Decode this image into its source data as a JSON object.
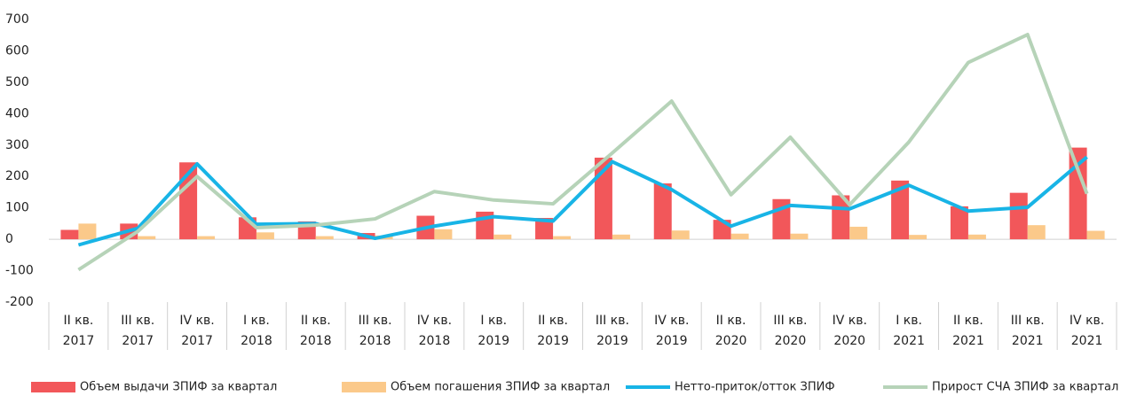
{
  "chart_data": {
    "type": "bar",
    "categories": [
      [
        "II кв.",
        "2017"
      ],
      [
        "III кв.",
        "2017"
      ],
      [
        "IV кв.",
        "2017"
      ],
      [
        "I кв.",
        "2018"
      ],
      [
        "II кв.",
        "2018"
      ],
      [
        "III кв.",
        "2018"
      ],
      [
        "IV кв.",
        "2018"
      ],
      [
        "I кв.",
        "2019"
      ],
      [
        "II кв.",
        "2019"
      ],
      [
        "III кв.",
        "2019"
      ],
      [
        "IV кв.",
        "2019"
      ],
      [
        "II кв.",
        "2020"
      ],
      [
        "III кв.",
        "2020"
      ],
      [
        "IV кв.",
        "2020"
      ],
      [
        "I кв.",
        "2021"
      ],
      [
        "II кв.",
        "2021"
      ],
      [
        "III кв.",
        "2021"
      ],
      [
        "IV кв.",
        "2021"
      ]
    ],
    "series": [
      {
        "name": "Объем выдачи ЗПИФ за квартал",
        "type": "bar",
        "color": "#f2575a",
        "values": [
          30,
          50,
          245,
          70,
          57,
          20,
          75,
          88,
          68,
          260,
          178,
          62,
          128,
          140,
          187,
          105,
          148,
          292
        ]
      },
      {
        "name": "Объем погашения ЗПИФ за квартал",
        "type": "bar",
        "color": "#fbc98a",
        "values": [
          50,
          10,
          10,
          22,
          10,
          12,
          32,
          15,
          10,
          15,
          28,
          18,
          18,
          40,
          14,
          15,
          45,
          27
        ]
      },
      {
        "name": "Нетто-приток/отток ЗПИФ",
        "type": "line",
        "color": "#18b4e6",
        "values": [
          -18,
          35,
          240,
          48,
          50,
          3,
          42,
          72,
          58,
          247,
          158,
          42,
          108,
          97,
          172,
          90,
          102,
          262
        ]
      },
      {
        "name": "Прирост СЧА ЗПИФ за квартал",
        "type": "line",
        "color": "#b6d3b8",
        "values": [
          -97,
          25,
          200,
          37,
          45,
          65,
          152,
          125,
          113,
          275,
          440,
          142,
          325,
          110,
          310,
          563,
          652,
          145
        ]
      }
    ],
    "ylim": [
      -200,
      700
    ],
    "yticks": [
      -200,
      -100,
      0,
      100,
      200,
      300,
      400,
      500,
      600,
      700
    ],
    "legend": "bottom"
  }
}
